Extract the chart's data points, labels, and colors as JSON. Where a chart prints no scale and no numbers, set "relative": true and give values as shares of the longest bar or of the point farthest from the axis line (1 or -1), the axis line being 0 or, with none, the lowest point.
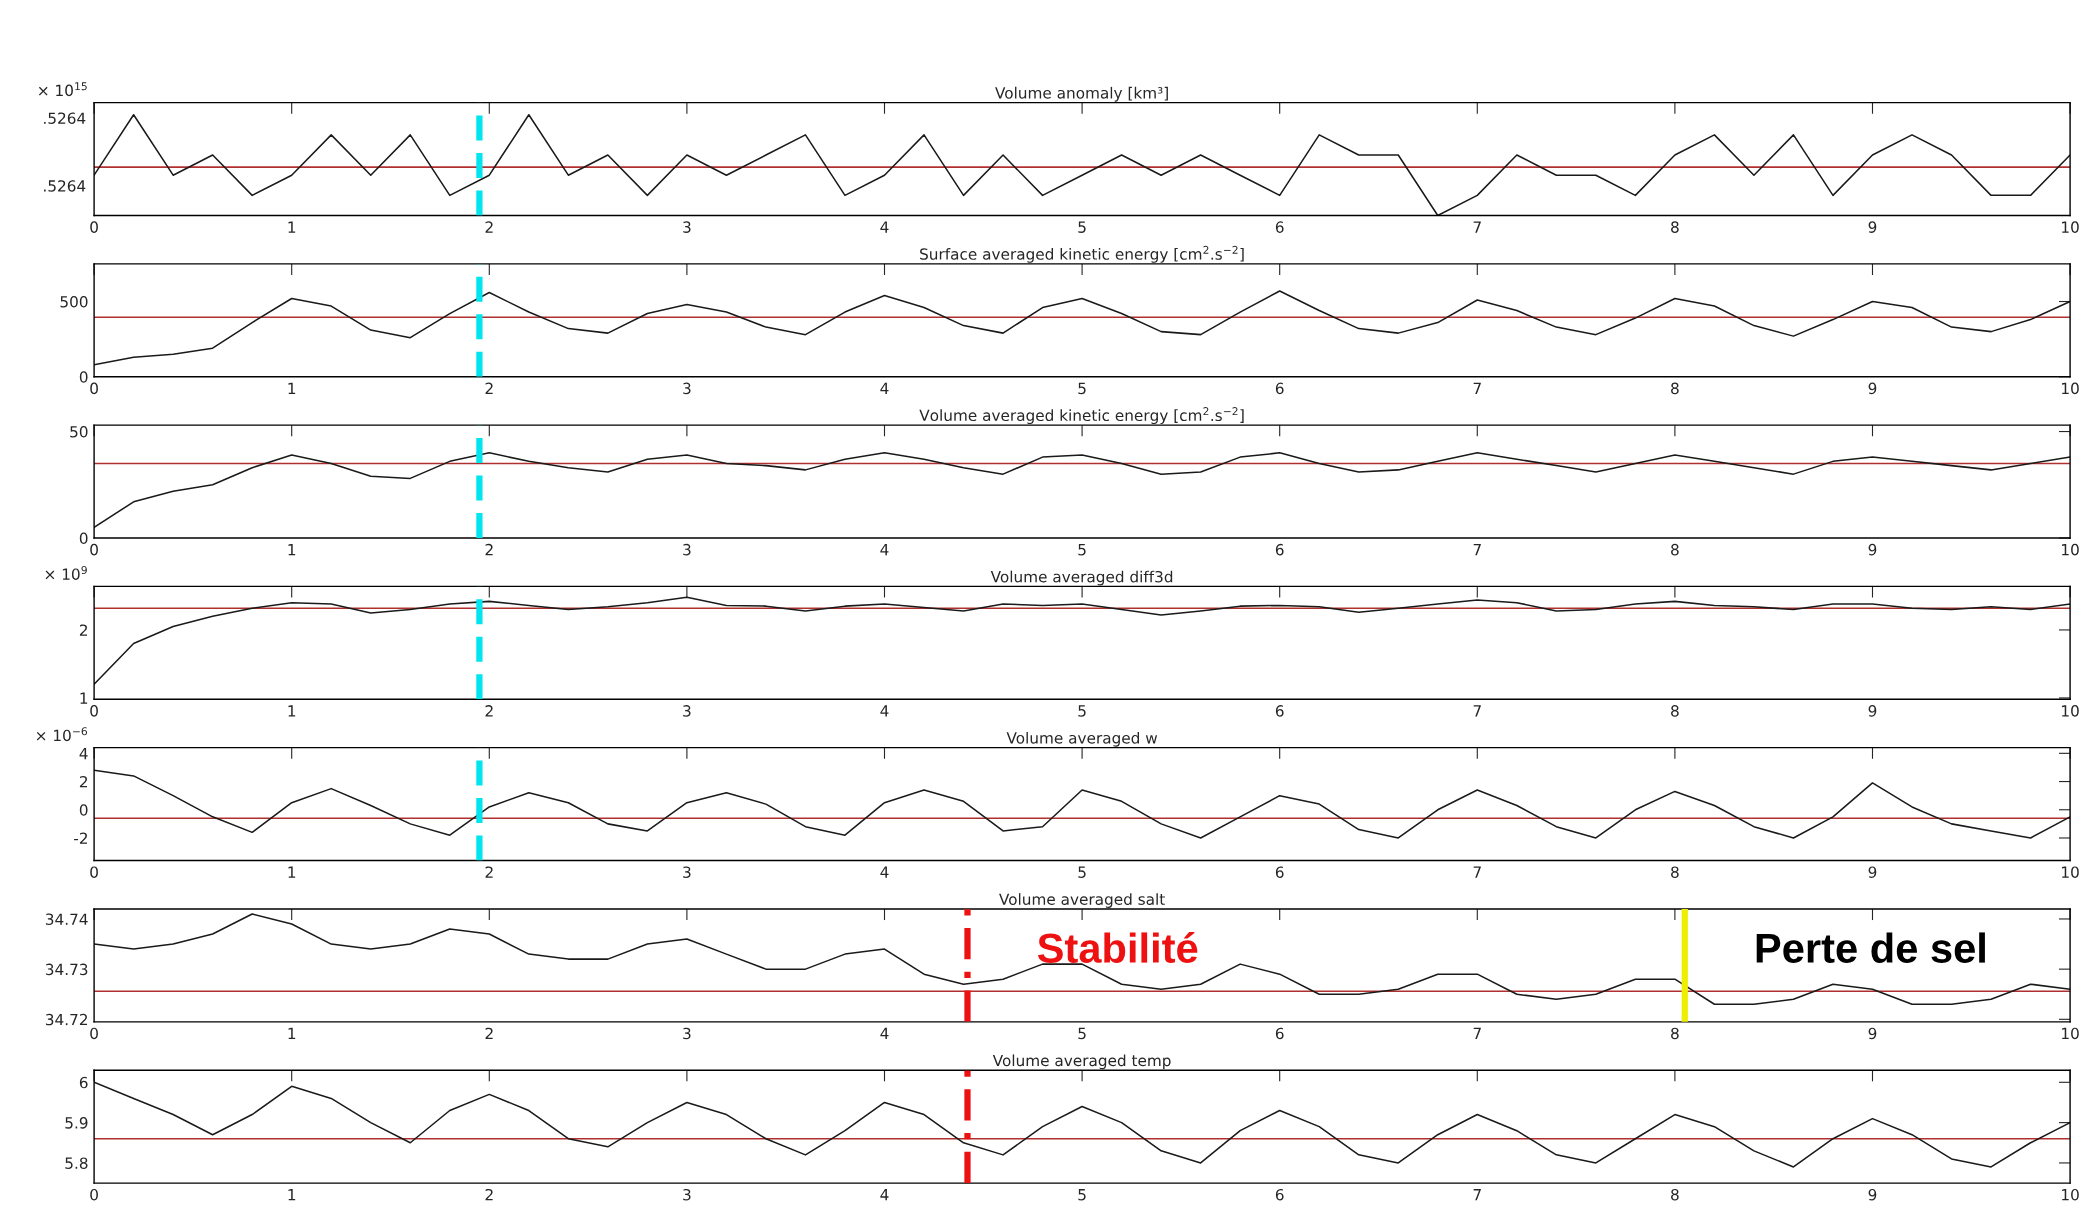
{
  "chart_data": [
    {
      "type": "line",
      "title": "Volume anomaly [km³]",
      "relative": true,
      "annotations": [
        "× 10$^{15}$",
        ".5264",
        ".5264"
      ],
      "x": [
        0,
        0.2,
        0.4,
        0.6,
        0.8,
        1,
        1.2,
        1.4,
        1.6,
        1.8,
        2,
        2.2,
        2.4,
        2.6,
        2.8,
        3,
        3.2,
        3.4,
        3.6,
        3.8,
        4,
        4.2,
        4.4,
        4.6,
        4.8,
        5,
        5.2,
        5.4,
        5.6,
        5.8,
        6,
        6.2,
        6.4,
        6.6,
        6.8,
        7,
        7.2,
        7.4,
        7.6,
        7.8,
        8,
        8.2,
        8.4,
        8.6,
        8.8,
        9,
        9.2,
        9.4,
        9.6,
        9.8,
        10
      ],
      "series": [
        {
          "color": "#1a1a1a",
          "values": [
            0.4,
            1,
            0.4,
            0.6,
            0.2,
            0.4,
            0.8,
            0.4,
            0.8,
            0.2,
            0.4,
            1,
            0.4,
            0.6,
            0.2,
            0.6,
            0.4,
            0.6,
            0.8,
            0.2,
            0.4,
            0.8,
            0.2,
            0.6,
            0.2,
            0.4,
            0.6,
            0.4,
            0.6,
            0.4,
            0.2,
            0.8,
            0.6,
            0.6,
            0,
            0.2,
            0.6,
            0.4,
            0.4,
            0.2,
            0.6,
            0.8,
            0.4,
            0.8,
            0.2,
            0.6,
            0.8,
            0.6,
            0.2,
            0.2,
            0.6
          ]
        }
      ],
      "xlim": [
        0,
        10
      ],
      "xticks": [
        0,
        1,
        2,
        3,
        4,
        5,
        6,
        7,
        8,
        9,
        10
      ],
      "grid": false,
      "ref_lines": [
        {
          "axis": "y",
          "value": 0.48,
          "color": "#b03030",
          "line_style": "solid"
        },
        {
          "axis": "x",
          "value": 1.95,
          "color": "#00e5ee",
          "line_style": "dashed"
        }
      ]
    },
    {
      "type": "line",
      "title": "Surface averaged kinetic energy [cm$^{2}$.s$^{−2}$]",
      "x": [
        0,
        0.2,
        0.4,
        0.6,
        0.8,
        1,
        1.2,
        1.4,
        1.6,
        1.8,
        2,
        2.2,
        2.4,
        2.6,
        2.8,
        3,
        3.2,
        3.4,
        3.6,
        3.8,
        4,
        4.2,
        4.4,
        4.6,
        4.8,
        5,
        5.2,
        5.4,
        5.6,
        5.8,
        6,
        6.2,
        6.4,
        6.6,
        6.8,
        7,
        7.2,
        7.4,
        7.6,
        7.8,
        8,
        8.2,
        8.4,
        8.6,
        8.8,
        9,
        9.2,
        9.4,
        9.6,
        9.8,
        10
      ],
      "series": [
        {
          "color": "#1a1a1a",
          "values": [
            80,
            130,
            150,
            190,
            360,
            520,
            470,
            310,
            260,
            420,
            560,
            430,
            320,
            290,
            420,
            480,
            430,
            330,
            280,
            430,
            540,
            460,
            340,
            290,
            460,
            520,
            420,
            300,
            280,
            430,
            570,
            440,
            320,
            290,
            360,
            510,
            440,
            330,
            280,
            390,
            520,
            470,
            340,
            270,
            380,
            500,
            460,
            330,
            300,
            380,
            500
          ]
        }
      ],
      "xlim": [
        0,
        10
      ],
      "xticks": [
        0,
        1,
        2,
        3,
        4,
        5,
        6,
        7,
        8,
        9,
        10
      ],
      "ylim": [
        0,
        750
      ],
      "yticks": [
        0,
        500
      ],
      "grid": false,
      "ref_lines": [
        {
          "axis": "y",
          "value": 395,
          "color": "#b03030",
          "line_style": "solid"
        },
        {
          "axis": "x",
          "value": 1.95,
          "color": "#00e5ee",
          "line_style": "dashed"
        }
      ]
    },
    {
      "type": "line",
      "title": "Volume averaged kinetic energy [cm$^{2}$.s$^{−2}$]",
      "x": [
        0,
        0.2,
        0.4,
        0.6,
        0.8,
        1,
        1.2,
        1.4,
        1.6,
        1.8,
        2,
        2.2,
        2.4,
        2.6,
        2.8,
        3,
        3.2,
        3.4,
        3.6,
        3.8,
        4,
        4.2,
        4.4,
        4.6,
        4.8,
        5,
        5.2,
        5.4,
        5.6,
        5.8,
        6,
        6.2,
        6.4,
        6.6,
        6.8,
        7,
        7.2,
        7.4,
        7.6,
        7.8,
        8,
        8.2,
        8.4,
        8.6,
        8.8,
        9,
        9.2,
        9.4,
        9.6,
        9.8,
        10
      ],
      "series": [
        {
          "color": "#1a1a1a",
          "values": [
            5,
            17,
            22,
            25,
            33,
            39,
            35,
            29,
            28,
            36,
            40,
            36,
            33,
            31,
            37,
            39,
            35,
            34,
            32,
            37,
            40,
            37,
            33,
            30,
            38,
            39,
            35,
            30,
            31,
            38,
            40,
            35,
            31,
            32,
            36,
            40,
            37,
            34,
            31,
            35,
            39,
            36,
            33,
            30,
            36,
            38,
            36,
            34,
            32,
            35,
            38
          ]
        }
      ],
      "xlim": [
        0,
        10
      ],
      "xticks": [
        0,
        1,
        2,
        3,
        4,
        5,
        6,
        7,
        8,
        9,
        10
      ],
      "ylim": [
        0,
        53
      ],
      "yticks": [
        0,
        50
      ],
      "grid": false,
      "ref_lines": [
        {
          "axis": "y",
          "value": 35,
          "color": "#b03030",
          "line_style": "solid"
        },
        {
          "axis": "x",
          "value": 1.95,
          "color": "#00e5ee",
          "line_style": "dashed"
        }
      ]
    },
    {
      "type": "line",
      "title": "Volume averaged diff3d",
      "annotations": [
        "× 10$^{9}$"
      ],
      "x": [
        0,
        0.2,
        0.4,
        0.6,
        0.8,
        1,
        1.2,
        1.4,
        1.6,
        1.8,
        2,
        2.2,
        2.4,
        2.6,
        2.8,
        3,
        3.2,
        3.4,
        3.6,
        3.8,
        4,
        4.2,
        4.4,
        4.6,
        4.8,
        5,
        5.2,
        5.4,
        5.6,
        5.8,
        6,
        6.2,
        6.4,
        6.6,
        6.8,
        7,
        7.2,
        7.4,
        7.6,
        7.8,
        8,
        8.2,
        8.4,
        8.6,
        8.8,
        9,
        9.2,
        9.4,
        9.6,
        9.8,
        10
      ],
      "series": [
        {
          "color": "#1a1a1a",
          "values": [
            1.2,
            1.8,
            2.05,
            2.2,
            2.32,
            2.4,
            2.38,
            2.25,
            2.3,
            2.38,
            2.42,
            2.36,
            2.3,
            2.34,
            2.4,
            2.48,
            2.36,
            2.35,
            2.28,
            2.35,
            2.38,
            2.33,
            2.28,
            2.38,
            2.36,
            2.38,
            2.3,
            2.22,
            2.28,
            2.35,
            2.36,
            2.34,
            2.26,
            2.32,
            2.38,
            2.44,
            2.4,
            2.28,
            2.3,
            2.38,
            2.42,
            2.36,
            2.34,
            2.3,
            2.38,
            2.38,
            2.32,
            2.3,
            2.34,
            2.3,
            2.38
          ]
        }
      ],
      "xlim": [
        0,
        10
      ],
      "xticks": [
        0,
        1,
        2,
        3,
        4,
        5,
        6,
        7,
        8,
        9,
        10
      ],
      "ylim": [
        0.98,
        2.64
      ],
      "yticks": [
        1,
        2
      ],
      "grid": false,
      "ref_lines": [
        {
          "axis": "y",
          "value": 2.32,
          "color": "#b03030",
          "line_style": "solid"
        },
        {
          "axis": "x",
          "value": 1.95,
          "color": "#00e5ee",
          "line_style": "dashed"
        }
      ]
    },
    {
      "type": "line",
      "title": "Volume averaged w",
      "annotations": [
        "× 10$^{−6}$"
      ],
      "x": [
        0,
        0.2,
        0.4,
        0.6,
        0.8,
        1,
        1.2,
        1.4,
        1.6,
        1.8,
        2,
        2.2,
        2.4,
        2.6,
        2.8,
        3,
        3.2,
        3.4,
        3.6,
        3.8,
        4,
        4.2,
        4.4,
        4.6,
        4.8,
        5,
        5.2,
        5.4,
        5.6,
        5.8,
        6,
        6.2,
        6.4,
        6.6,
        6.8,
        7,
        7.2,
        7.4,
        7.6,
        7.8,
        8,
        8.2,
        8.4,
        8.6,
        8.8,
        9,
        9.2,
        9.4,
        9.6,
        9.8,
        10
      ],
      "series": [
        {
          "color": "#1a1a1a",
          "values": [
            2.8,
            2.4,
            1.0,
            -0.5,
            -1.6,
            0.5,
            1.5,
            0.3,
            -1.0,
            -1.8,
            0.2,
            1.2,
            0.5,
            -1.0,
            -1.5,
            0.5,
            1.2,
            0.4,
            -1.2,
            -1.8,
            0.5,
            1.4,
            0.6,
            -1.5,
            -1.2,
            1.4,
            0.6,
            -1.0,
            -2.0,
            -0.5,
            1.0,
            0.4,
            -1.4,
            -2.0,
            0.0,
            1.4,
            0.3,
            -1.2,
            -2.0,
            0.0,
            1.3,
            0.3,
            -1.2,
            -2.0,
            -0.5,
            1.9,
            0.2,
            -1.0,
            -1.5,
            -2.0,
            -0.5
          ]
        }
      ],
      "xlim": [
        0,
        10
      ],
      "xticks": [
        0,
        1,
        2,
        3,
        4,
        5,
        6,
        7,
        8,
        9,
        10
      ],
      "ylim": [
        -3.6,
        4.4
      ],
      "yticks": [
        -2,
        0,
        2,
        4
      ],
      "grid": false,
      "ref_lines": [
        {
          "axis": "y",
          "value": -0.6,
          "color": "#b03030",
          "line_style": "solid"
        },
        {
          "axis": "x",
          "value": 1.95,
          "color": "#00e5ee",
          "line_style": "dashed"
        }
      ]
    },
    {
      "type": "line",
      "title": "Volume averaged salt",
      "x": [
        0,
        0.2,
        0.4,
        0.6,
        0.8,
        1,
        1.2,
        1.4,
        1.6,
        1.8,
        2,
        2.2,
        2.4,
        2.6,
        2.8,
        3,
        3.2,
        3.4,
        3.6,
        3.8,
        4,
        4.2,
        4.4,
        4.6,
        4.8,
        5,
        5.2,
        5.4,
        5.6,
        5.8,
        6,
        6.2,
        6.4,
        6.6,
        6.8,
        7,
        7.2,
        7.4,
        7.6,
        7.8,
        8,
        8.2,
        8.4,
        8.6,
        8.8,
        9,
        9.2,
        9.4,
        9.6,
        9.8,
        10
      ],
      "series": [
        {
          "color": "#1a1a1a",
          "values": [
            34.735,
            34.734,
            34.735,
            34.737,
            34.741,
            34.739,
            34.735,
            34.734,
            34.735,
            34.738,
            34.737,
            34.733,
            34.732,
            34.732,
            34.735,
            34.736,
            34.733,
            34.73,
            34.73,
            34.733,
            34.734,
            34.729,
            34.727,
            34.728,
            34.731,
            34.731,
            34.727,
            34.726,
            34.727,
            34.731,
            34.729,
            34.725,
            34.725,
            34.726,
            34.729,
            34.729,
            34.725,
            34.724,
            34.725,
            34.728,
            34.728,
            34.723,
            34.723,
            34.724,
            34.727,
            34.726,
            34.723,
            34.723,
            34.724,
            34.727,
            34.726
          ]
        }
      ],
      "xlim": [
        0,
        10
      ],
      "xticks": [
        0,
        1,
        2,
        3,
        4,
        5,
        6,
        7,
        8,
        9,
        10
      ],
      "ylim": [
        34.7195,
        34.742
      ],
      "yticks": [
        34.72,
        34.73,
        34.74
      ],
      "grid": false,
      "ref_lines": [
        {
          "axis": "y",
          "value": 34.7256,
          "color": "#b03030",
          "line_style": "solid"
        },
        {
          "axis": "x",
          "value": 4.42,
          "color": "#ee1111",
          "line_style": "dashdot",
          "label": "Stabilité"
        },
        {
          "axis": "x",
          "value": 8.05,
          "color": "#eeee00",
          "line_style": "solid",
          "label": "Perte de sel"
        }
      ]
    },
    {
      "type": "line",
      "title": "Volume averaged temp",
      "x": [
        0,
        0.2,
        0.4,
        0.6,
        0.8,
        1,
        1.2,
        1.4,
        1.6,
        1.8,
        2,
        2.2,
        2.4,
        2.6,
        2.8,
        3,
        3.2,
        3.4,
        3.6,
        3.8,
        4,
        4.2,
        4.4,
        4.6,
        4.8,
        5,
        5.2,
        5.4,
        5.6,
        5.8,
        6,
        6.2,
        6.4,
        6.6,
        6.8,
        7,
        7.2,
        7.4,
        7.6,
        7.8,
        8,
        8.2,
        8.4,
        8.6,
        8.8,
        9,
        9.2,
        9.4,
        9.6,
        9.8,
        10
      ],
      "series": [
        {
          "color": "#1a1a1a",
          "values": [
            6.0,
            5.96,
            5.92,
            5.87,
            5.92,
            5.99,
            5.96,
            5.9,
            5.85,
            5.93,
            5.97,
            5.93,
            5.86,
            5.84,
            5.9,
            5.95,
            5.92,
            5.86,
            5.82,
            5.88,
            5.95,
            5.92,
            5.85,
            5.82,
            5.89,
            5.94,
            5.9,
            5.83,
            5.8,
            5.88,
            5.93,
            5.89,
            5.82,
            5.8,
            5.87,
            5.92,
            5.88,
            5.82,
            5.8,
            5.86,
            5.92,
            5.89,
            5.83,
            5.79,
            5.86,
            5.91,
            5.87,
            5.81,
            5.79,
            5.85,
            5.9
          ]
        }
      ],
      "xlim": [
        0,
        10
      ],
      "xticks": [
        0,
        1,
        2,
        3,
        4,
        5,
        6,
        7,
        8,
        9,
        10
      ],
      "ylim": [
        5.75,
        6.03
      ],
      "yticks": [
        5.8,
        5.9,
        6
      ],
      "grid": false,
      "ref_lines": [
        {
          "axis": "y",
          "value": 5.86,
          "color": "#b03030",
          "line_style": "solid"
        },
        {
          "axis": "x",
          "value": 4.42,
          "color": "#ee1111",
          "line_style": "dashdot"
        }
      ]
    }
  ]
}
